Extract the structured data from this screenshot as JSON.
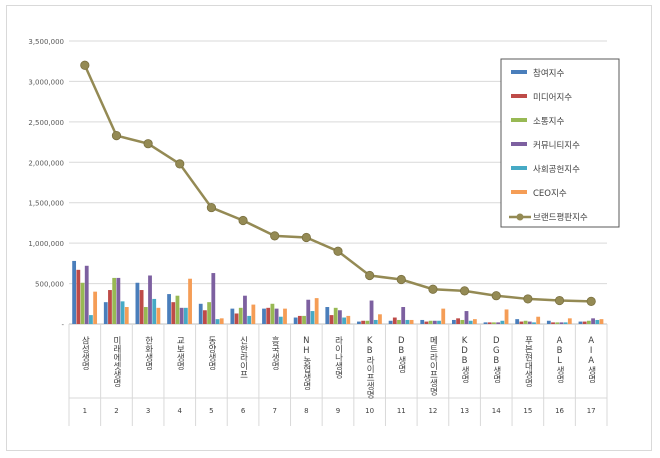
{
  "chart_data": {
    "type": "bar",
    "categories": [
      "삼성생명",
      "미래에셋생명",
      "한화생명",
      "교보생명",
      "동양생명",
      "신한라이프",
      "흥국생명",
      "NH농협생명",
      "라이나생명",
      "KB라이프생명",
      "DB생명",
      "메트라이프생명",
      "KDB생명",
      "DGB생명",
      "푸본현대생명",
      "ABL생명",
      "AIA생명"
    ],
    "ranks": [
      "1",
      "2",
      "3",
      "4",
      "5",
      "6",
      "7",
      "8",
      "9",
      "10",
      "11",
      "12",
      "13",
      "14",
      "15",
      "16",
      "17"
    ],
    "ylim": [
      0,
      3500000
    ],
    "yticks": [
      "-",
      "500,000",
      "1,000,000",
      "1,500,000",
      "2,000,000",
      "2,500,000",
      "3,000,000",
      "3,500,000"
    ],
    "ytick_values": [
      0,
      500000,
      1000000,
      1500000,
      2000000,
      2500000,
      3000000,
      3500000
    ],
    "grid": true,
    "legend_position": "top-right",
    "series": [
      {
        "name": "참여지수",
        "color": "#4a7ebb",
        "values": [
          780000,
          270000,
          510000,
          370000,
          250000,
          190000,
          190000,
          80000,
          210000,
          30000,
          40000,
          50000,
          50000,
          20000,
          60000,
          40000,
          30000
        ]
      },
      {
        "name": "미디어지수",
        "color": "#be4b48",
        "values": [
          670000,
          420000,
          420000,
          270000,
          170000,
          130000,
          200000,
          100000,
          110000,
          40000,
          80000,
          30000,
          70000,
          20000,
          30000,
          20000,
          30000
        ]
      },
      {
        "name": "소통지수",
        "color": "#98b954",
        "values": [
          510000,
          570000,
          210000,
          350000,
          270000,
          200000,
          250000,
          100000,
          200000,
          40000,
          50000,
          40000,
          50000,
          20000,
          40000,
          20000,
          40000
        ]
      },
      {
        "name": "커뮤니티지수",
        "color": "#7d60a0",
        "values": [
          720000,
          570000,
          600000,
          200000,
          630000,
          350000,
          190000,
          300000,
          170000,
          290000,
          210000,
          40000,
          160000,
          20000,
          30000,
          20000,
          70000
        ]
      },
      {
        "name": "사회공헌지수",
        "color": "#46aac5",
        "values": [
          110000,
          280000,
          310000,
          200000,
          60000,
          100000,
          90000,
          160000,
          80000,
          50000,
          50000,
          40000,
          40000,
          40000,
          20000,
          20000,
          50000
        ]
      },
      {
        "name": "CEO지수",
        "color": "#f59d56",
        "values": [
          400000,
          210000,
          200000,
          560000,
          70000,
          240000,
          190000,
          320000,
          100000,
          120000,
          50000,
          190000,
          60000,
          180000,
          90000,
          70000,
          60000
        ]
      }
    ],
    "line": {
      "name": "브랜드평판지수",
      "color": "#948a54",
      "values": [
        3200000,
        2330000,
        2230000,
        1980000,
        1440000,
        1280000,
        1090000,
        1070000,
        900000,
        600000,
        550000,
        430000,
        410000,
        350000,
        310000,
        290000,
        280000
      ]
    }
  }
}
